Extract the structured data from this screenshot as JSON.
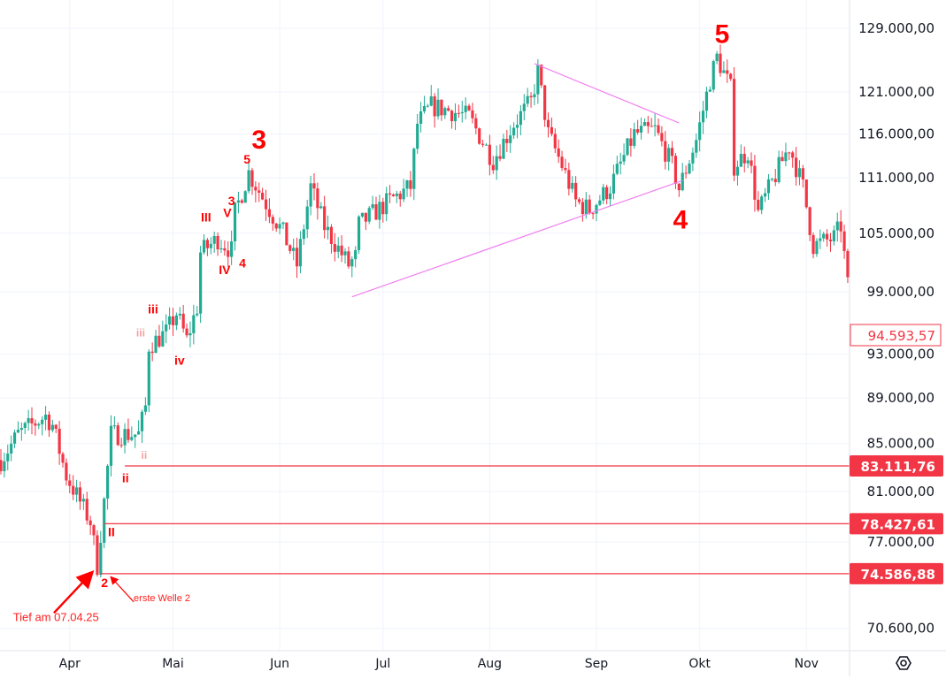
{
  "chart_data": {
    "type": "candlestick",
    "title": "",
    "xlabel": "",
    "ylabel": "",
    "y_scale": "log",
    "ylim": [
      69000,
      131000
    ],
    "x_unit": "days since 12 Mar 2025",
    "xlim": [
      0,
      246
    ],
    "grid": true,
    "colors": {
      "up": "#22ab94",
      "down": "#f23645",
      "level": "#f23645",
      "triangle": "#f07ef0",
      "annotation": "#ff0000"
    },
    "x_ticks": [
      {
        "label": "Apr",
        "day": 20
      },
      {
        "label": "Mai",
        "day": 50
      },
      {
        "label": "Jun",
        "day": 81
      },
      {
        "label": "Jul",
        "day": 111
      },
      {
        "label": "Aug",
        "day": 142
      },
      {
        "label": "Sep",
        "day": 173
      },
      {
        "label": "Okt",
        "day": 203
      },
      {
        "label": "Nov",
        "day": 234
      }
    ],
    "y_ticks": [
      {
        "label": "129.000,00",
        "value": 129000
      },
      {
        "label": "121.000,00",
        "value": 121000
      },
      {
        "label": "116.000,00",
        "value": 116000
      },
      {
        "label": "111.000,00",
        "value": 111000
      },
      {
        "label": "105.000,00",
        "value": 105000
      },
      {
        "label": "99.000,00",
        "value": 99000
      },
      {
        "label": "93.000,00",
        "value": 93000
      },
      {
        "label": "89.000,00",
        "value": 89000
      },
      {
        "label": "85.000,00",
        "value": 85000
      },
      {
        "label": "81.000,00",
        "value": 81000
      },
      {
        "label": "77.000,00",
        "value": 77000
      },
      {
        "label": "70.600,00",
        "value": 70600
      }
    ],
    "price_path": [
      [
        0,
        83600
      ],
      [
        5,
        85800
      ],
      [
        13,
        87400
      ],
      [
        15,
        86600
      ],
      [
        19,
        82300
      ],
      [
        26,
        78600
      ],
      [
        28,
        75200
      ],
      [
        30,
        80200
      ],
      [
        32,
        85800
      ],
      [
        40,
        85800
      ],
      [
        42,
        88200
      ],
      [
        43,
        93800
      ],
      [
        48,
        95000
      ],
      [
        51,
        96900
      ],
      [
        54,
        94300
      ],
      [
        57,
        97500
      ],
      [
        58,
        103000
      ],
      [
        63,
        104400
      ],
      [
        67,
        103200
      ],
      [
        68,
        107200
      ],
      [
        72,
        111600
      ],
      [
        77,
        108200
      ],
      [
        82,
        105000
      ],
      [
        86,
        101700
      ],
      [
        90,
        110000
      ],
      [
        94,
        105700
      ],
      [
        101,
        101700
      ],
      [
        103,
        102500
      ],
      [
        104,
        105900
      ],
      [
        113,
        108500
      ],
      [
        119,
        110000
      ],
      [
        121,
        117200
      ],
      [
        125,
        119300
      ],
      [
        131,
        118700
      ],
      [
        136,
        118000
      ],
      [
        143,
        113000
      ],
      [
        149,
        117200
      ],
      [
        154,
        119800
      ],
      [
        156,
        123500
      ],
      [
        159,
        116000
      ],
      [
        163,
        112400
      ],
      [
        167,
        108400
      ],
      [
        171,
        107500
      ],
      [
        177,
        110000
      ],
      [
        184,
        116000
      ],
      [
        190,
        116500
      ],
      [
        195,
        112400
      ],
      [
        197,
        109800
      ],
      [
        202,
        115300
      ],
      [
        206,
        122500
      ],
      [
        208,
        125300
      ],
      [
        212,
        121400
      ],
      [
        213,
        112400
      ],
      [
        217,
        114000
      ],
      [
        220,
        107200
      ],
      [
        224,
        110500
      ],
      [
        229,
        114600
      ],
      [
        233,
        110000
      ],
      [
        236,
        103700
      ],
      [
        242,
        104500
      ],
      [
        244,
        105800
      ],
      [
        246,
        99600
      ]
    ],
    "current_price": {
      "label": "94.593,57",
      "value": 94593.57
    },
    "levels": [
      {
        "label": "83.111,76",
        "value": 83111.76,
        "from_day": 36
      },
      {
        "label": "78.427,61",
        "value": 78427.61,
        "from_day": 30
      },
      {
        "label": "74.586,88",
        "value": 74586.88,
        "from_day": 29
      }
    ],
    "triangle_lines": [
      {
        "from": [
          102,
          98500
        ],
        "to": [
          198,
          110700
        ]
      },
      {
        "from": [
          155,
          124500
        ],
        "to": [
          197,
          117300
        ]
      }
    ],
    "annotations": [
      {
        "text": "3",
        "day": 75,
        "price": 115400,
        "size": "big"
      },
      {
        "text": "5",
        "day": 71.5,
        "price": 113100,
        "size": "small"
      },
      {
        "text": "3",
        "day": 67,
        "price": 108500,
        "size": "small"
      },
      {
        "text": "V",
        "day": 65.8,
        "price": 107200,
        "size": "small"
      },
      {
        "text": "III",
        "day": 59.6,
        "price": 106700,
        "size": "small"
      },
      {
        "text": "IV",
        "day": 65,
        "price": 101200,
        "size": "small"
      },
      {
        "text": "4",
        "day": 70.2,
        "price": 101900,
        "size": "small"
      },
      {
        "text": "iii",
        "day": 44.2,
        "price": 97300,
        "size": "small"
      },
      {
        "text": "iii",
        "day": 40.6,
        "price": 95000,
        "size": "faded"
      },
      {
        "text": "iv",
        "day": 51.9,
        "price": 92400,
        "size": "small"
      },
      {
        "text": "ii",
        "day": 41.6,
        "price": 84000,
        "size": "faded"
      },
      {
        "text": "ii",
        "day": 36.2,
        "price": 82100,
        "size": "small"
      },
      {
        "text": "II",
        "day": 32.1,
        "price": 77800,
        "size": "small"
      },
      {
        "text": "2",
        "day": 30.1,
        "price": 73900,
        "size": "small"
      },
      {
        "text": "4",
        "day": 197.4,
        "price": 106500,
        "size": "big"
      },
      {
        "text": "5",
        "day": 209.5,
        "price": 128300,
        "size": "big"
      },
      {
        "text": "erste Welle 2",
        "day": 46.8,
        "price": 72800,
        "size": "note"
      },
      {
        "text": "Tief am 07.04.25",
        "day": 16,
        "price": 71400,
        "size": "note-big"
      }
    ],
    "arrows": [
      {
        "from": [
          15.4,
          71700
        ],
        "to": [
          26.2,
          74600
        ]
      },
      {
        "from": [
          38.6,
          72500
        ],
        "to": [
          32.1,
          74300
        ]
      }
    ]
  },
  "settings_icon": "gear-hexagon-icon"
}
